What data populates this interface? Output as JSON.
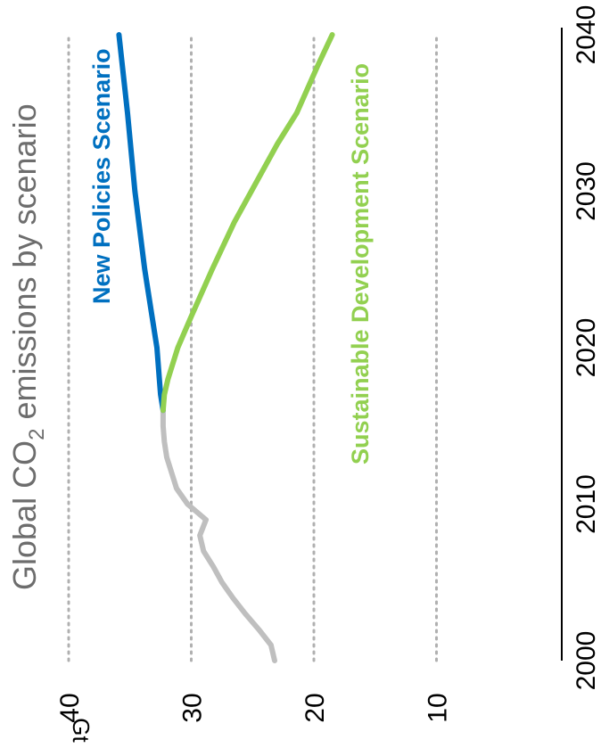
{
  "chart_data": {
    "type": "line",
    "title_main": "Global CO",
    "title_sub": "2",
    "title_rest": " emissions by scenario",
    "unit": "Gt",
    "xlim": [
      2000,
      2040
    ],
    "ylim": [
      0,
      40
    ],
    "x_ticks": [
      "2000",
      "2010",
      "2020",
      "2030",
      "2040"
    ],
    "y_ticks": [
      "10",
      "20",
      "30",
      "40"
    ],
    "gridlines": "dotted horizontal",
    "series": [
      {
        "key": "historical",
        "color": "#bfbfbf",
        "x": [
          2000,
          2001,
          2002,
          2003,
          2004,
          2005,
          2006,
          2007,
          2008,
          2009,
          2010,
          2011,
          2012,
          2013,
          2014,
          2015,
          2016
        ],
        "y": [
          23.2,
          23.5,
          24.5,
          25.6,
          26.6,
          27.5,
          28.2,
          29.0,
          29.3,
          28.8,
          30.3,
          31.2,
          31.6,
          32.0,
          32.2,
          32.3,
          32.3
        ]
      },
      {
        "key": "new_policies",
        "name": "New Policies Scenario",
        "color": "#0070c0",
        "x": [
          2016,
          2017,
          2018,
          2020,
          2022,
          2025,
          2030,
          2035,
          2040
        ],
        "y": [
          32.3,
          32.5,
          32.6,
          32.8,
          33.2,
          33.8,
          34.6,
          35.2,
          35.9
        ]
      },
      {
        "key": "sustainable",
        "name": "Sustainable Development Scenario",
        "color": "#92d050",
        "x": [
          2016,
          2017,
          2018,
          2020,
          2022,
          2025,
          2028,
          2030,
          2033,
          2035,
          2038,
          2040
        ],
        "y": [
          32.3,
          32.2,
          31.9,
          31.1,
          30.0,
          28.3,
          26.5,
          25.1,
          23.0,
          21.4,
          19.7,
          18.5
        ]
      }
    ]
  }
}
